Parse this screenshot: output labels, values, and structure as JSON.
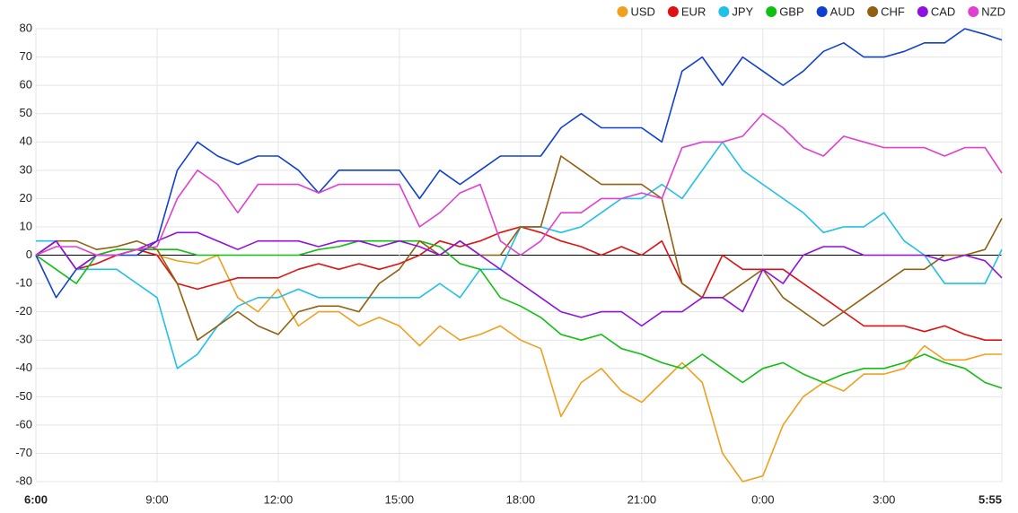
{
  "chart_data": {
    "type": "line",
    "x": [
      0,
      30,
      60,
      90,
      120,
      150,
      180,
      210,
      240,
      270,
      300,
      330,
      360,
      390,
      420,
      450,
      480,
      510,
      540,
      570,
      600,
      630,
      660,
      690,
      720,
      750,
      780,
      810,
      840,
      870,
      900,
      930,
      960,
      990,
      1020,
      1050,
      1080,
      1110,
      1140,
      1170,
      1200,
      1230,
      1260,
      1290,
      1320,
      1350,
      1380,
      1410,
      1435
    ],
    "xlim": [
      0,
      1435
    ],
    "xticks": [
      {
        "value": 0,
        "label": "6:00"
      },
      {
        "value": 180,
        "label": "9:00"
      },
      {
        "value": 360,
        "label": "12:00"
      },
      {
        "value": 540,
        "label": "15:00"
      },
      {
        "value": 720,
        "label": "18:00"
      },
      {
        "value": 900,
        "label": "21:00"
      },
      {
        "value": 1080,
        "label": "0:00"
      },
      {
        "value": 1260,
        "label": "3:00"
      },
      {
        "value": 1435,
        "label": "5:55"
      }
    ],
    "ylim": [
      -80,
      80
    ],
    "yticks": [
      -80,
      -70,
      -60,
      -50,
      -40,
      -30,
      -20,
      -10,
      0,
      10,
      20,
      30,
      40,
      50,
      60,
      70,
      80
    ],
    "grid": true,
    "legend": "top-right",
    "series": [
      {
        "name": "USD",
        "color": "#f0a020",
        "values": [
          0,
          5,
          -5,
          0,
          2,
          2,
          0,
          -2,
          -3,
          0,
          -15,
          -20,
          -12,
          -25,
          -20,
          -20,
          -25,
          -22,
          -25,
          -32,
          -25,
          -30,
          -28,
          -25,
          -30,
          -33,
          -57,
          -45,
          -40,
          -48,
          -52,
          -45,
          -38,
          -45,
          -70,
          -80,
          -78,
          -60,
          -50,
          -45,
          -48,
          -42,
          -42,
          -40,
          -32,
          -37,
          -37,
          -35,
          -35
        ]
      },
      {
        "name": "EUR",
        "color": "#e01010",
        "values": [
          0,
          5,
          -5,
          -3,
          0,
          2,
          0,
          -10,
          -12,
          -10,
          -8,
          -8,
          -8,
          -5,
          -3,
          -5,
          -3,
          -5,
          -3,
          0,
          5,
          3,
          5,
          8,
          10,
          8,
          5,
          3,
          0,
          3,
          0,
          5,
          -10,
          -15,
          0,
          -5,
          -5,
          -5,
          -10,
          -15,
          -20,
          -25,
          -25,
          -25,
          -27,
          -25,
          -28,
          -30,
          -30
        ]
      },
      {
        "name": "JPY",
        "color": "#20c0e8",
        "values": [
          5,
          5,
          -5,
          -5,
          -5,
          -10,
          -15,
          -40,
          -35,
          -25,
          -18,
          -15,
          -15,
          -12,
          -15,
          -15,
          -15,
          -15,
          -15,
          -15,
          -10,
          -15,
          -5,
          -5,
          10,
          10,
          8,
          10,
          15,
          20,
          20,
          25,
          20,
          30,
          40,
          30,
          25,
          20,
          15,
          8,
          10,
          10,
          15,
          5,
          0,
          -10,
          -10,
          -10,
          2
        ]
      },
      {
        "name": "GBP",
        "color": "#10c010",
        "values": [
          0,
          -5,
          -10,
          0,
          2,
          2,
          2,
          2,
          0,
          0,
          0,
          0,
          0,
          0,
          2,
          3,
          5,
          5,
          5,
          5,
          3,
          -3,
          -5,
          -15,
          -18,
          -22,
          -28,
          -30,
          -28,
          -33,
          -35,
          -38,
          -40,
          -35,
          -40,
          -45,
          -40,
          -38,
          -42,
          -45,
          -42,
          -40,
          -40,
          -38,
          -35,
          -38,
          -40,
          -45,
          -47
        ]
      },
      {
        "name": "AUD",
        "color": "#1040d0",
        "values": [
          0,
          -15,
          -5,
          0,
          0,
          0,
          5,
          30,
          40,
          35,
          32,
          35,
          35,
          30,
          22,
          30,
          30,
          30,
          30,
          20,
          30,
          25,
          30,
          35,
          35,
          35,
          45,
          50,
          45,
          45,
          45,
          40,
          65,
          70,
          60,
          70,
          65,
          60,
          65,
          72,
          75,
          70,
          70,
          72,
          75,
          75,
          80,
          78,
          76
        ]
      },
      {
        "name": "CHF",
        "color": "#906010",
        "values": [
          0,
          5,
          5,
          2,
          3,
          5,
          2,
          -10,
          -30,
          -25,
          -20,
          -25,
          -28,
          -20,
          -18,
          -18,
          -20,
          -10,
          -5,
          5,
          0,
          5,
          0,
          0,
          10,
          10,
          35,
          30,
          25,
          25,
          25,
          20,
          -10,
          -15,
          -15,
          -10,
          -5,
          -15,
          -20,
          -25,
          -20,
          -15,
          -10,
          -5,
          -5,
          0,
          0,
          2,
          13
        ]
      },
      {
        "name": "CAD",
        "color": "#9010e0",
        "values": [
          0,
          5,
          -5,
          0,
          0,
          2,
          5,
          8,
          8,
          5,
          2,
          5,
          5,
          5,
          3,
          5,
          5,
          3,
          5,
          3,
          0,
          5,
          0,
          -5,
          -10,
          -15,
          -20,
          -22,
          -20,
          -20,
          -25,
          -20,
          -20,
          -15,
          -15,
          -20,
          -5,
          -10,
          0,
          3,
          3,
          0,
          0,
          0,
          0,
          -2,
          0,
          -2,
          -8
        ]
      },
      {
        "name": "NZD",
        "color": "#e040d0",
        "values": [
          0,
          3,
          3,
          0,
          0,
          2,
          3,
          20,
          30,
          25,
          15,
          25,
          25,
          25,
          22,
          25,
          25,
          25,
          25,
          10,
          15,
          22,
          25,
          5,
          0,
          5,
          15,
          15,
          20,
          20,
          22,
          20,
          38,
          40,
          40,
          42,
          50,
          45,
          38,
          35,
          42,
          40,
          38,
          38,
          38,
          35,
          38,
          38,
          29
        ]
      }
    ]
  }
}
